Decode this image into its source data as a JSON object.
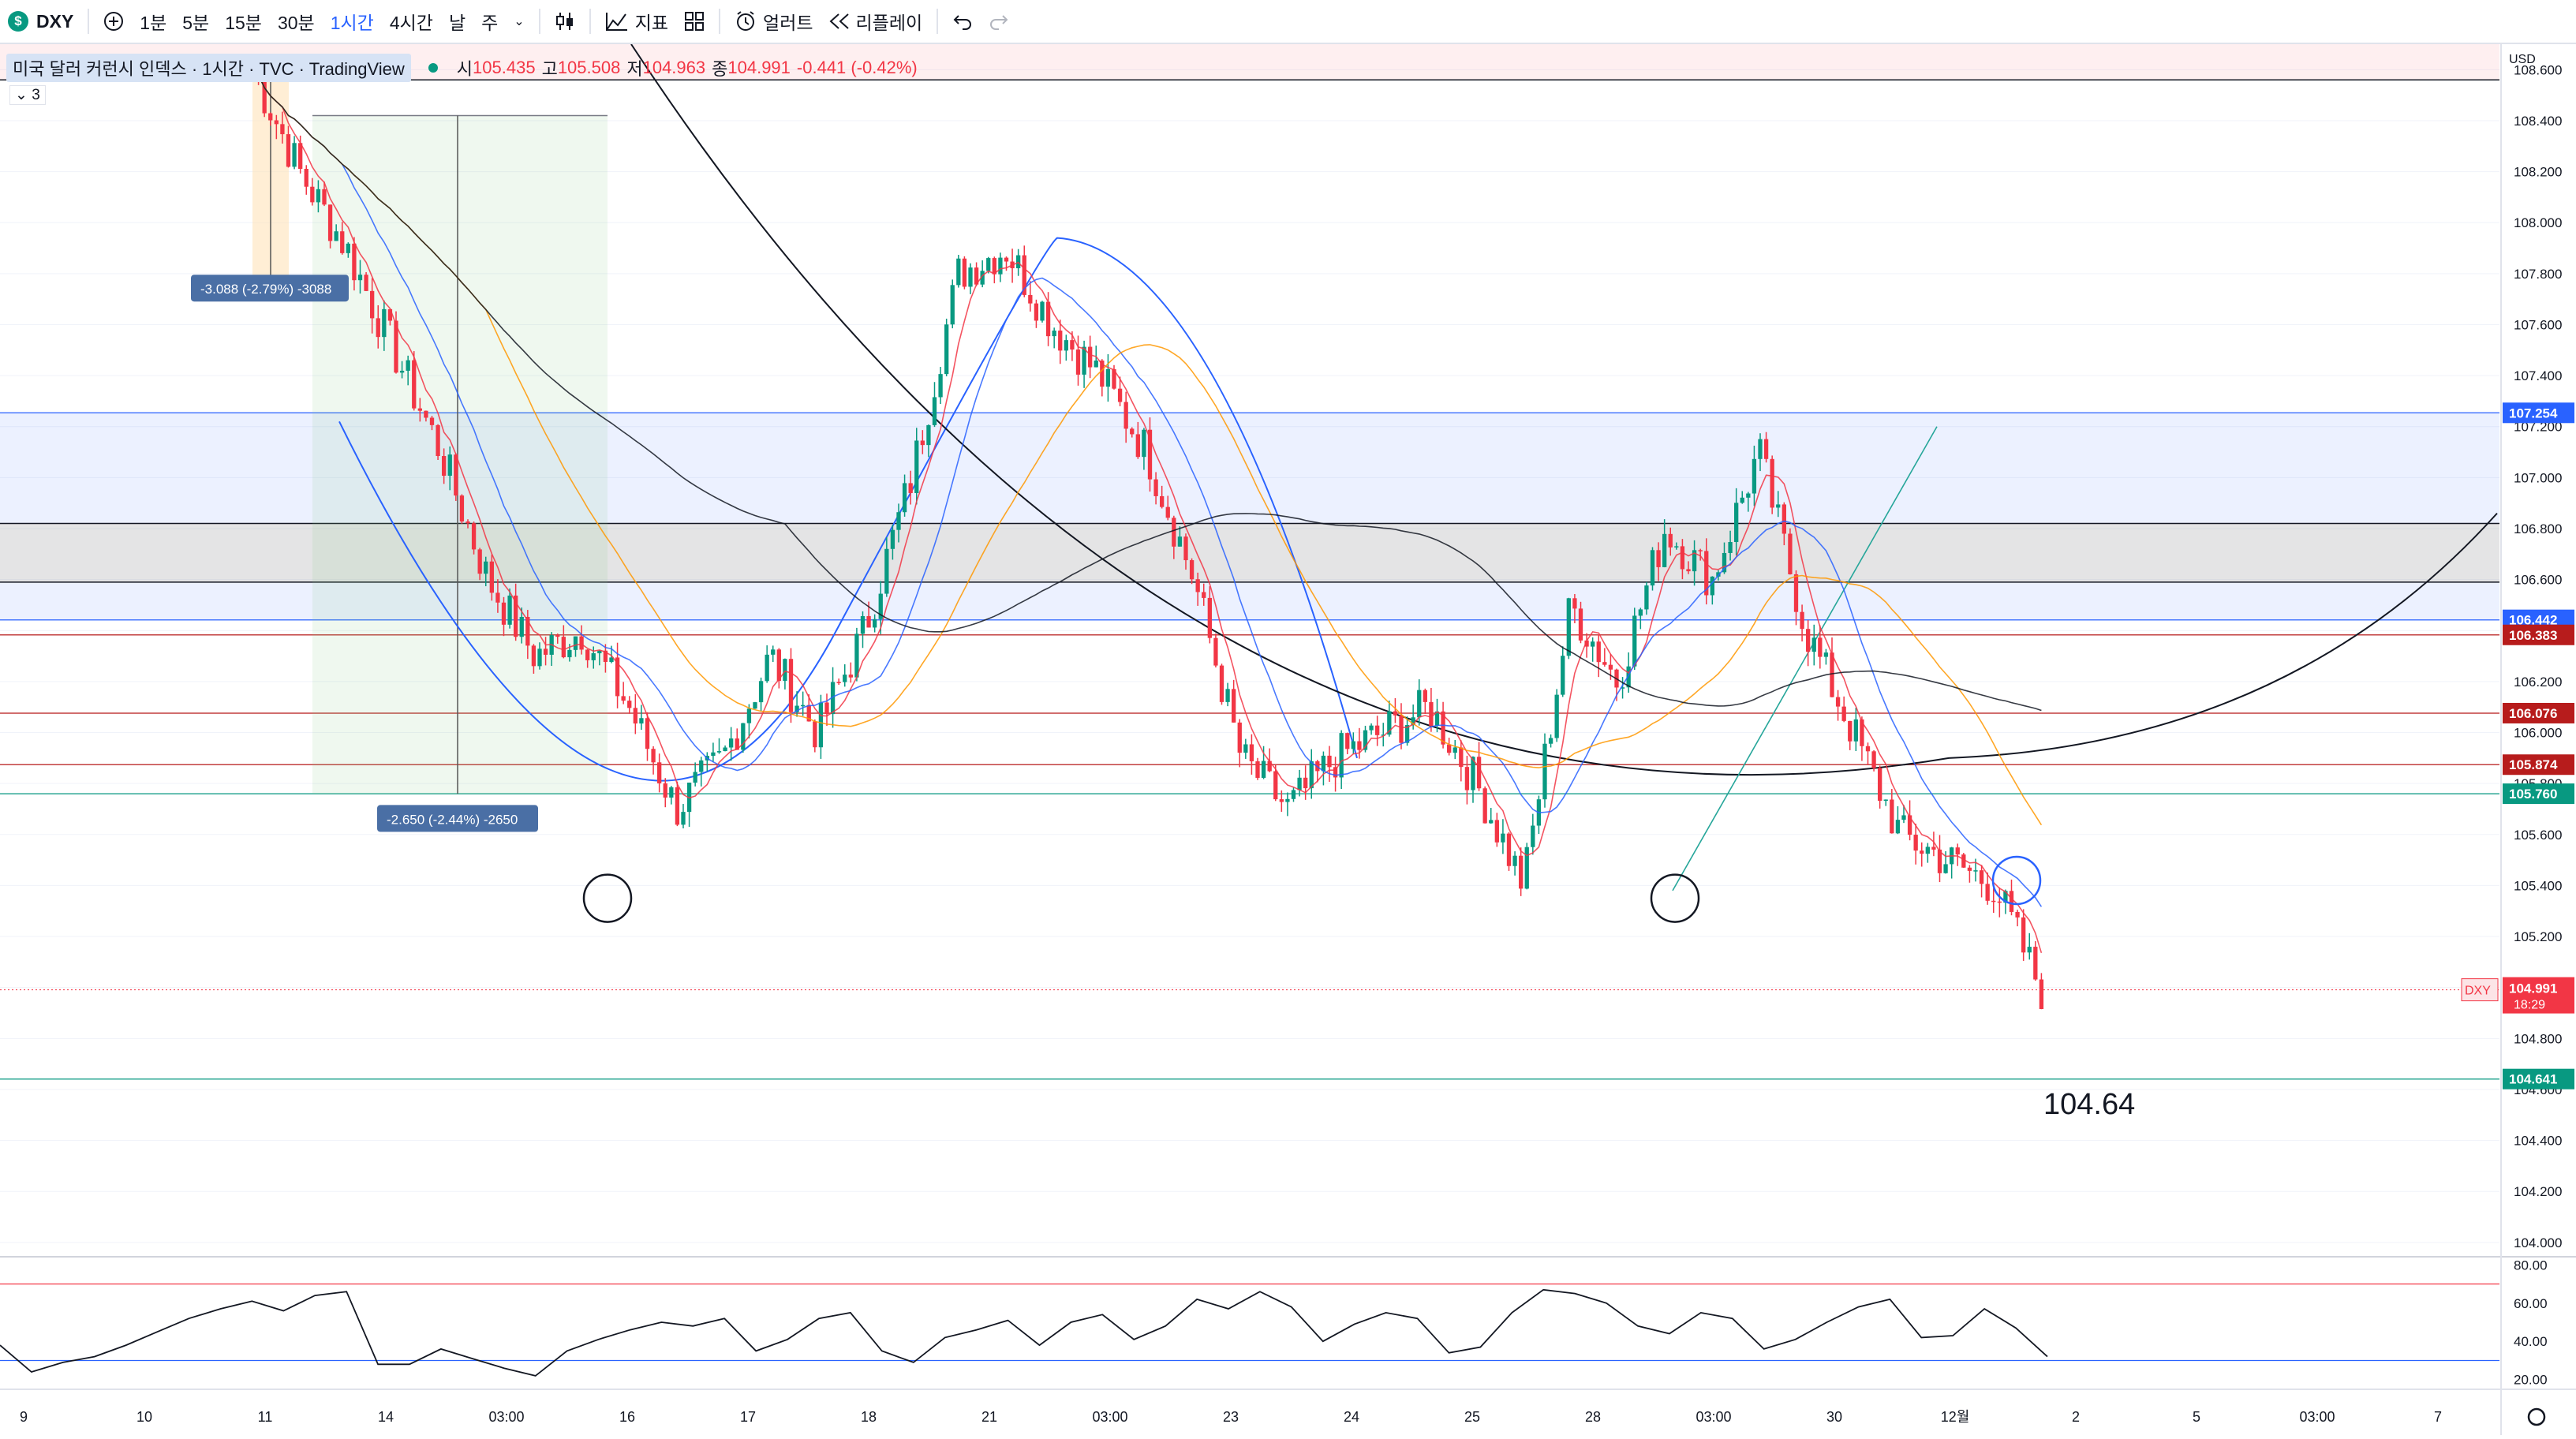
{
  "toolbar": {
    "symbol": "DXY",
    "symbol_badge": "$",
    "intervals": [
      "1분",
      "5분",
      "15분",
      "30분",
      "1시간",
      "4시간",
      "날",
      "주"
    ],
    "active_interval": "1시간",
    "indicators_label": "지표",
    "alerts_label": "얼러트",
    "replay_label": "리플레이"
  },
  "legend": {
    "title": "미국 달러 커런시 인덱스 · 1시간 · TVC · TradingView",
    "open_label": "시",
    "open": "105.435",
    "high_label": "고",
    "high": "105.508",
    "low_label": "저",
    "low": "104.963",
    "close_label": "종",
    "close": "104.991",
    "change": "-0.441 (-0.42%)",
    "collapsed_count": "3"
  },
  "colors": {
    "up": "#089981",
    "down": "#f23645",
    "ma_red": "#f23645",
    "ma_blue": "#2962ff",
    "ma_orange": "#ff9800",
    "ma_black": "#131722",
    "box_blue": "#2962ff",
    "box_green": "#81c784"
  },
  "chart_data": {
    "type": "line",
    "series": [
      {
        "values": [
          108.6,
          108.2,
          107.9,
          107.5,
          107.1,
          106.6,
          106.3,
          106.4,
          106.1,
          105.7,
          105.9,
          106.3,
          106.0,
          106.4,
          107.0,
          107.8,
          107.9,
          107.6,
          107.4,
          107.1,
          106.6,
          105.9,
          105.7,
          105.9,
          106.0,
          106.1,
          105.8,
          105.4,
          106.5,
          106.2,
          106.8,
          106.6,
          107.1,
          106.4,
          106.0,
          105.6,
          105.5,
          105.4,
          104.99
        ]
      }
    ],
    "y_axis": {
      "currency": "USD",
      "ticks": [
        "108.600",
        "108.400",
        "108.200",
        "108.000",
        "107.800",
        "107.600",
        "107.400",
        "107.200",
        "107.000",
        "106.800",
        "106.600",
        "106.400",
        "106.200",
        "106.000",
        "105.800",
        "105.600",
        "105.400",
        "105.200",
        "105.000",
        "104.800",
        "104.600",
        "104.400",
        "104.200",
        "104.000"
      ],
      "range": [
        103.95,
        108.7
      ]
    },
    "x_axis": {
      "ticks": [
        "9",
        "10",
        "11",
        "14",
        "03:00",
        "16",
        "17",
        "18",
        "21",
        "03:00",
        "23",
        "24",
        "25",
        "28",
        "03:00",
        "30",
        "12월",
        "2",
        "5",
        "03:00",
        "7"
      ]
    },
    "horizontal_levels": [
      {
        "value": "107.254",
        "color": "#2962ff"
      },
      {
        "value": "106.442",
        "color": "#2962ff"
      },
      {
        "value": "106.383",
        "color": "#b71c1c"
      },
      {
        "value": "106.076",
        "color": "#b71c1c"
      },
      {
        "value": "105.874",
        "color": "#b71c1c"
      },
      {
        "value": "105.760",
        "color": "#089981"
      },
      {
        "value": "104.641",
        "color": "#089981"
      }
    ],
    "current_price": {
      "symbol": "DXY",
      "value": "104.991",
      "countdown": "18:29"
    },
    "annotation_target": "104.64",
    "measure_labels": [
      "-3.088 (-2.79%) -3088",
      "-2.650 (-2.44%) -2650"
    ],
    "oscillator": {
      "ticks": [
        "80.00",
        "60.00",
        "40.00",
        "20.00"
      ],
      "range": [
        17,
        83
      ],
      "upper": 70,
      "lower": 30,
      "values": [
        38,
        24,
        29,
        32,
        38,
        45,
        52,
        57,
        61,
        56,
        64,
        66,
        28,
        28,
        36,
        31,
        26,
        22,
        35,
        41,
        46,
        50,
        48,
        52,
        35,
        41,
        52,
        55,
        35,
        29,
        42,
        46,
        51,
        38,
        50,
        54,
        41,
        48,
        62,
        57,
        66,
        58,
        40,
        49,
        55,
        52,
        34,
        37,
        55,
        67,
        65,
        60,
        48,
        44,
        55,
        52,
        36,
        41,
        50,
        58,
        62,
        42,
        43,
        57,
        47,
        32
      ]
    }
  }
}
